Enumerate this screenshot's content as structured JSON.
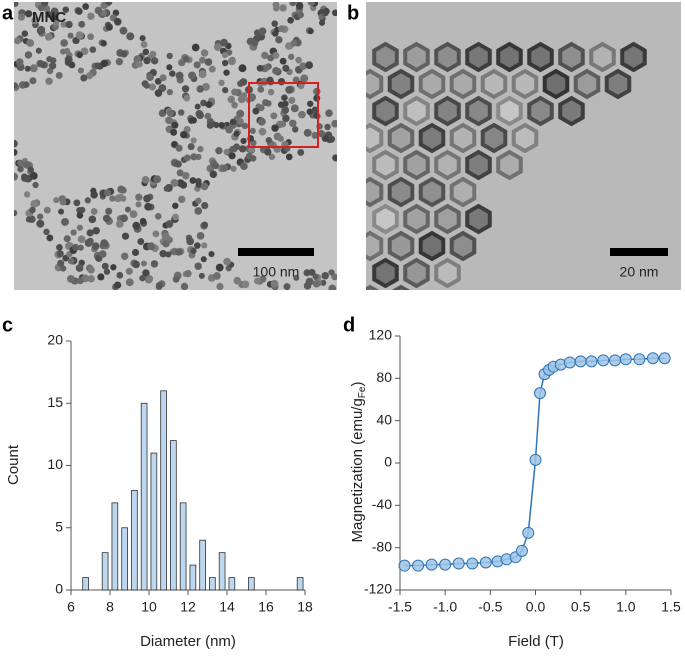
{
  "panels": [
    {
      "label": "a",
      "title": "MNC",
      "scale_bar": "100 nm"
    },
    {
      "label": "b",
      "scale_bar": "20 nm"
    },
    {
      "label": "c"
    },
    {
      "label": "d"
    }
  ],
  "chart_data": [
    {
      "type": "histogram",
      "xlabel": "Diameter (nm)",
      "ylabel": "Count",
      "color": "#bdd7ee",
      "edgecolor": "#333333",
      "bins": [
        6.5,
        7,
        7.5,
        8,
        8.5,
        9,
        9.5,
        10,
        10.5,
        11,
        11.5,
        12,
        12.5,
        13,
        13.5,
        14,
        14.5,
        15,
        15.5,
        16,
        16.5,
        17,
        17.5,
        18
      ],
      "values": [
        1,
        0,
        3,
        7,
        5,
        8,
        15,
        11,
        16,
        12,
        7,
        2,
        4,
        1,
        3,
        1,
        0,
        1,
        0,
        0,
        0,
        0,
        1
      ],
      "xlim": [
        6,
        18
      ],
      "xticks": [
        6,
        8,
        10,
        12,
        14,
        16,
        18
      ],
      "ylim": [
        0,
        20
      ],
      "yticks": [
        0,
        5,
        10,
        15,
        20
      ]
    },
    {
      "type": "scatter",
      "xlabel": "Field (T)",
      "ylabel": "Magnetization (emu/g",
      "ylabel_sub": "Fe",
      "ylabel_end": ")",
      "x": [
        -1.45,
        -1.3,
        -1.15,
        -1.0,
        -0.85,
        -0.7,
        -0.55,
        -0.42,
        -0.32,
        -0.22,
        -0.15,
        -0.08,
        0.0,
        0.05,
        0.1,
        0.15,
        0.2,
        0.28,
        0.38,
        0.5,
        0.62,
        0.75,
        0.88,
        1.0,
        1.15,
        1.3,
        1.43
      ],
      "series": [
        {
          "color": "#2e75b6",
          "marker_color": "#9dc3e6",
          "line": true,
          "values": [
            -97,
            -97,
            -96,
            -96,
            -95,
            -95,
            -94,
            -93,
            -91,
            -89,
            -83,
            -66,
            3,
            66,
            84,
            88,
            91,
            93,
            95,
            96,
            96,
            97,
            97,
            98,
            98,
            99,
            99
          ]
        }
      ],
      "xlim": [
        -1.5,
        1.5
      ],
      "xticks": [
        -1.5,
        {
          "value": -1.0,
          "label": "-1.0"
        },
        -0.5,
        {
          "value": 0.0,
          "label": "0.0"
        },
        0.5,
        {
          "value": 1.0,
          "label": "1.0"
        },
        1.5
      ],
      "ylim": [
        -120,
        120
      ],
      "yticks": [
        -120,
        -80,
        -40,
        0,
        40,
        80,
        120
      ]
    }
  ]
}
